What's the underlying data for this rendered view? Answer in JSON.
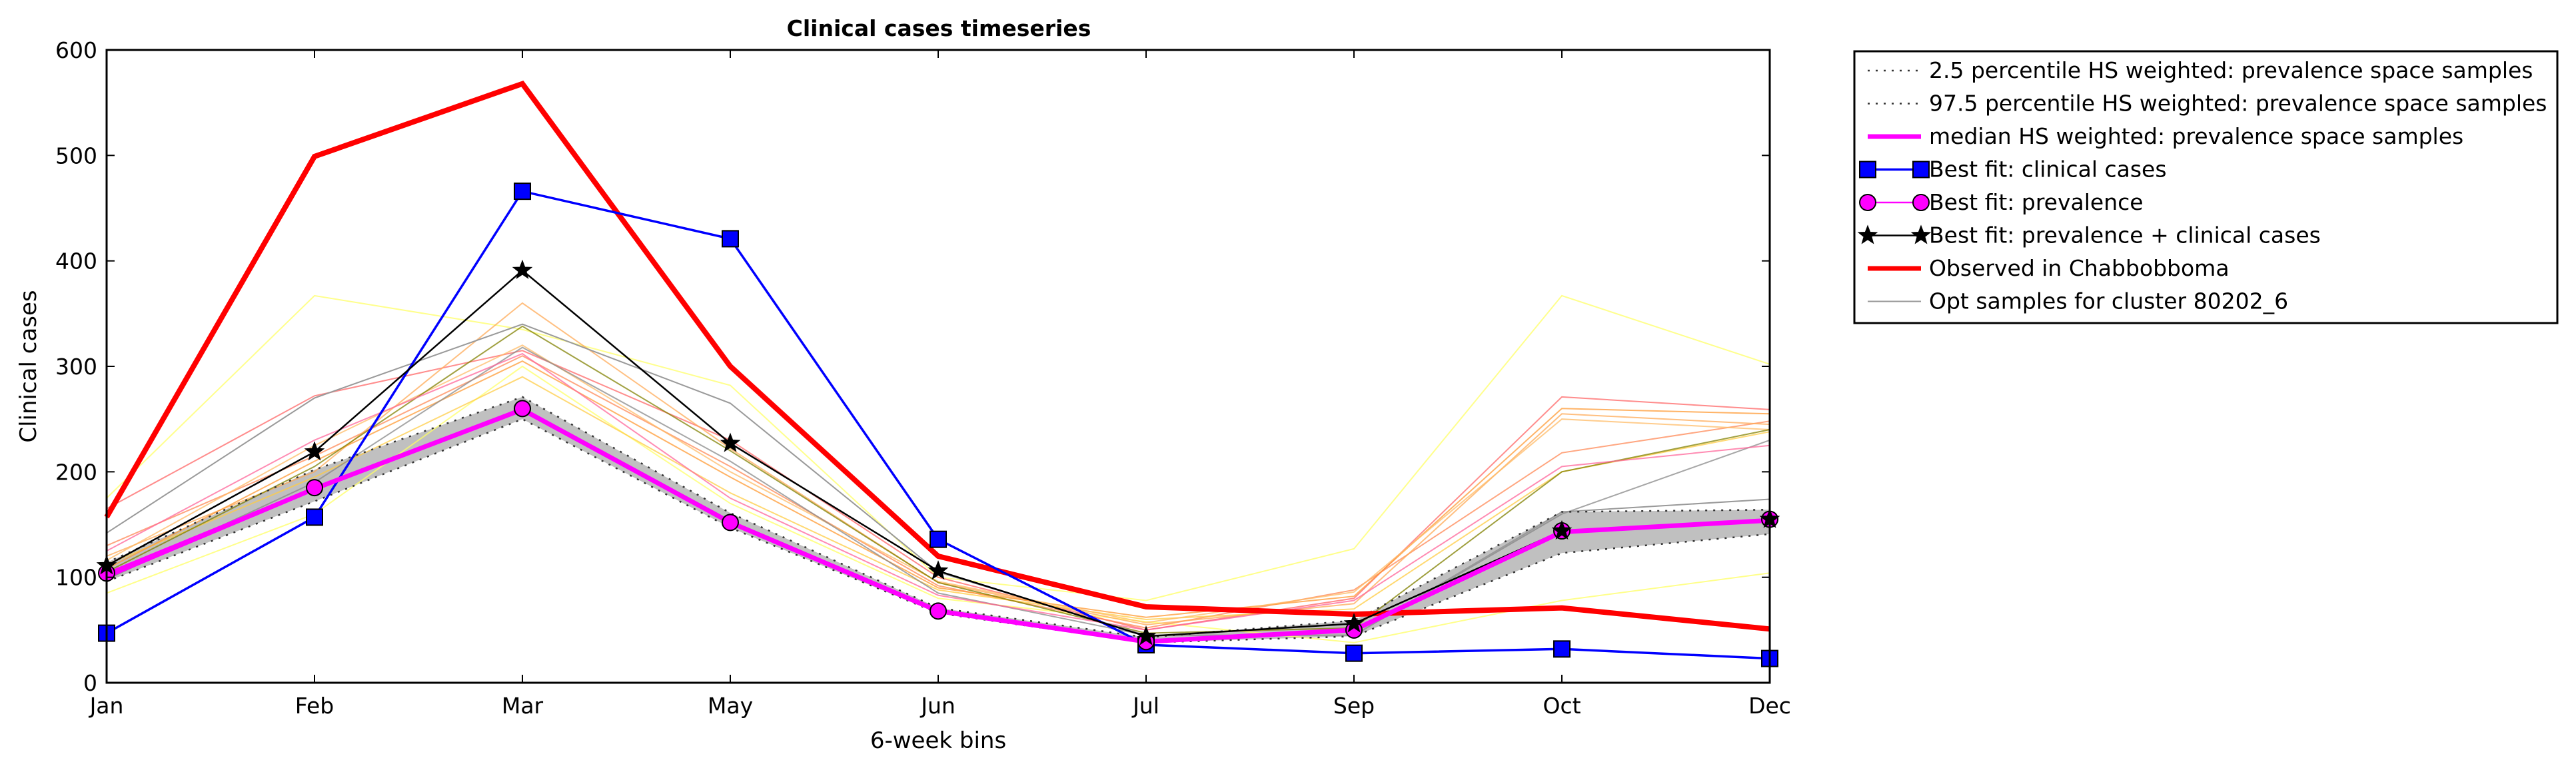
{
  "chart_data": {
    "type": "line",
    "title": "Clinical cases timeseries",
    "xlabel": "6-week bins",
    "ylabel": "Clinical cases",
    "categories": [
      "Jan",
      "Feb",
      "Mar",
      "May",
      "Jun",
      "Jul",
      "Sep",
      "Oct",
      "Dec"
    ],
    "ylim": [
      0,
      600
    ],
    "yticks": [
      0,
      100,
      200,
      300,
      400,
      500,
      600
    ],
    "grid": false,
    "legend_position": "outside-top-right",
    "band": {
      "lower": [
        96,
        172,
        250,
        147,
        66,
        38,
        44,
        123,
        141
      ],
      "upper": [
        114,
        202,
        271,
        161,
        71,
        43,
        59,
        162,
        164
      ],
      "fill": "#c0c0c0"
    },
    "series": [
      {
        "name": "2.5 percentile HS weighted: prevalence space samples",
        "style": "dotted",
        "color": "#333333",
        "marker": "none",
        "values": [
          96,
          172,
          250,
          147,
          66,
          38,
          44,
          123,
          141
        ]
      },
      {
        "name": "97.5 percentile HS weighted: prevalence space samples",
        "style": "dotted",
        "color": "#333333",
        "marker": "none",
        "values": [
          114,
          202,
          271,
          161,
          71,
          43,
          59,
          162,
          164
        ]
      },
      {
        "name": "median HS weighted: prevalence space samples",
        "style": "solid",
        "color": "#ff00ff",
        "marker": "none",
        "values": [
          101,
          184,
          259,
          152,
          68,
          39,
          50,
          143,
          154
        ]
      },
      {
        "name": "Best fit: clinical cases",
        "style": "solid",
        "color": "#0000ff",
        "marker": "square",
        "values": [
          47,
          157,
          466,
          421,
          136,
          36,
          28,
          32,
          23
        ]
      },
      {
        "name": "Best fit: prevalence",
        "style": "solid",
        "color": "#ff00ff",
        "marker": "circle",
        "values": [
          104,
          185,
          260,
          152,
          68,
          39,
          50,
          144,
          155
        ]
      },
      {
        "name": "Best fit: prevalence + clinical cases",
        "style": "solid",
        "color": "#000000",
        "marker": "star",
        "values": [
          111,
          219,
          391,
          227,
          106,
          44,
          56,
          144,
          155
        ]
      },
      {
        "name": "Observed in Chabbobboma",
        "style": "solid",
        "color": "#ff0000",
        "marker": "none",
        "values": [
          157,
          499,
          568,
          300,
          120,
          72,
          65,
          71,
          51
        ]
      },
      {
        "name": "Opt samples for cluster 80202_6",
        "style": "solid",
        "color": "#999999",
        "marker": "none",
        "values": [
          142,
          270,
          340,
          265,
          105,
          45,
          45,
          162,
          174
        ]
      }
    ],
    "opt_samples": [
      {
        "color": "#ffff66",
        "values": [
          175,
          367,
          335,
          282,
          100,
          78,
          127,
          367,
          302
        ]
      },
      {
        "color": "#ffff66",
        "values": [
          85,
          160,
          300,
          170,
          80,
          58,
          38,
          78,
          104
        ]
      },
      {
        "color": "#ff6666",
        "values": [
          165,
          272,
          315,
          230,
          100,
          50,
          80,
          271,
          259
        ]
      },
      {
        "color": "#ff8855",
        "values": [
          130,
          215,
          310,
          205,
          92,
          52,
          88,
          218,
          248
        ]
      },
      {
        "color": "#ffaa55",
        "values": [
          120,
          200,
          360,
          222,
          95,
          55,
          75,
          255,
          245
        ]
      },
      {
        "color": "#ffcc44",
        "values": [
          112,
          195,
          290,
          180,
          88,
          60,
          70,
          200,
          238
        ]
      },
      {
        "color": "#ff9933",
        "values": [
          108,
          210,
          305,
          195,
          90,
          62,
          82,
          260,
          255
        ]
      },
      {
        "color": "#ffbb66",
        "values": [
          116,
          225,
          320,
          200,
          96,
          57,
          86,
          250,
          240
        ]
      },
      {
        "color": "#888888",
        "values": [
          98,
          190,
          318,
          210,
          85,
          45,
          45,
          160,
          230
        ]
      },
      {
        "color": "#808000",
        "values": [
          105,
          205,
          338,
          220,
          95,
          47,
          52,
          200,
          240
        ]
      },
      {
        "color": "#ff6699",
        "values": [
          125,
          230,
          312,
          175,
          83,
          50,
          78,
          205,
          225
        ]
      }
    ]
  }
}
